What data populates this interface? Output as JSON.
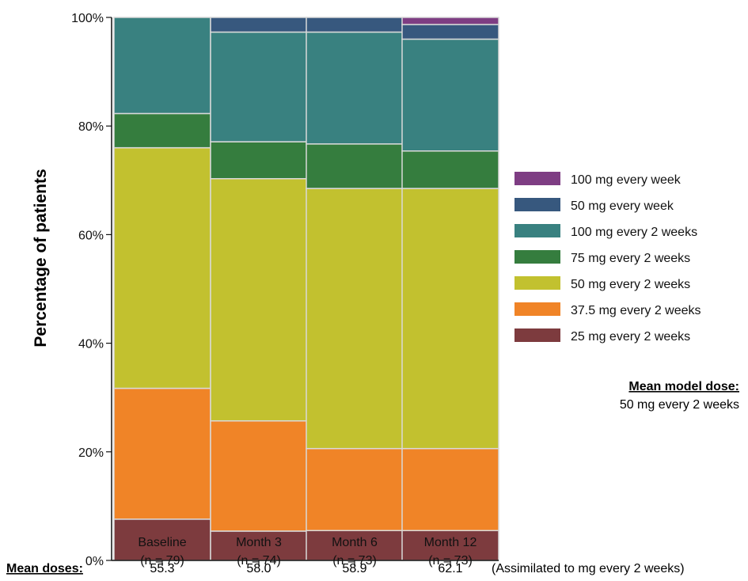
{
  "chart_data": {
    "type": "bar",
    "stacked": true,
    "ylabel": "Percentage of patients",
    "ylim": [
      0,
      100
    ],
    "yticks": [
      "0%",
      "20%",
      "40%",
      "60%",
      "80%",
      "100%"
    ],
    "categories": [
      "Baseline",
      "Month 3",
      "Month 6",
      "Month 12"
    ],
    "category_n": [
      "(n = 79)",
      "(n = 74)",
      "(n = 73)",
      "(n = 73)"
    ],
    "series": [
      {
        "name": "25 mg every 2 weeks",
        "color": "#7d3b3e",
        "values": [
          7.6,
          5.4,
          5.5,
          5.5
        ]
      },
      {
        "name": "37.5 mg every 2 weeks",
        "color": "#f08427",
        "values": [
          24.1,
          20.3,
          15.1,
          15.1
        ]
      },
      {
        "name": "50 mg every 2 weeks",
        "color": "#c2c12f",
        "values": [
          44.3,
          44.6,
          47.9,
          47.9
        ]
      },
      {
        "name": "75 mg every 2 weeks",
        "color": "#357d3e",
        "values": [
          6.3,
          6.8,
          8.2,
          6.9
        ]
      },
      {
        "name": "100 mg every 2 weeks",
        "color": "#398180",
        "values": [
          17.7,
          20.2,
          20.6,
          20.6
        ]
      },
      {
        "name": "50 mg every week",
        "color": "#37587e",
        "values": [
          0,
          2.7,
          2.7,
          2.7
        ]
      },
      {
        "name": "100 mg every week",
        "color": "#7e3d83",
        "values": [
          0,
          0,
          0,
          1.3
        ]
      }
    ],
    "legend_order": [
      "100 mg every week",
      "50 mg every week",
      "100 mg every 2 weeks",
      "75 mg every 2 weeks",
      "50 mg every 2 weeks",
      "37.5 mg every 2 weeks",
      "25 mg every 2 weeks"
    ],
    "legend_position": "right",
    "grid": false
  },
  "note": {
    "title": "Mean model dose:",
    "text": "50 mg every 2 weeks"
  },
  "footer": {
    "label": "Mean doses:",
    "values": [
      "55.3",
      "58.0",
      "58.9",
      "62.1"
    ],
    "suffix": "(Assimilated to mg every 2 weeks)"
  }
}
